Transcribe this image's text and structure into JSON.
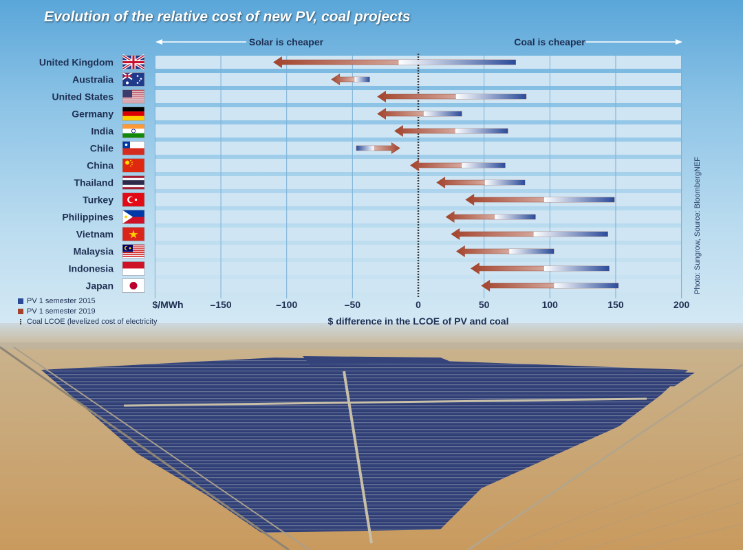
{
  "title": "Evolution of the relative cost of new PV, coal projects",
  "header_left": "Solar is cheaper",
  "header_right": "Coal is cheaper",
  "legend": [
    {
      "label": "PV 1 semester 2015",
      "color": "#2b4b99"
    },
    {
      "label": "PV 1 semester 2019",
      "color": "#a3432c"
    },
    {
      "label": "Coal LCOE (levelized cost of electricity",
      "color": "#444444"
    }
  ],
  "credit": "Photo: Sungrow, Source: BloombergNEF",
  "colors": {
    "pv2015": "#2b4b99",
    "pv2019": "#a3432c",
    "band": "#cfe5f3",
    "grid": "#7ab0d6"
  },
  "chart_data": {
    "type": "arrow-range",
    "title": "Evolution of the relative cost of new PV, coal projects",
    "xlabel": "$ difference in the LCOE of PV and coal",
    "unit_label": "$/MWh",
    "xlim": [
      -200,
      200
    ],
    "xticks": [
      -150,
      -100,
      -50,
      0,
      50,
      100,
      150,
      200
    ],
    "tick_labels": [
      "–150",
      "–100",
      "–50",
      "0",
      "50",
      "100",
      "150",
      "200"
    ],
    "series_names": [
      "PV 1 semester 2015",
      "PV 1 semester 2019"
    ],
    "categories": [
      "United Kingdom",
      "Australia",
      "United States",
      "Germany",
      "India",
      "Chile",
      "China",
      "Thailand",
      "Turkey",
      "Philippines",
      "Vietnam",
      "Malaysia",
      "Indonesia",
      "Japan"
    ],
    "pv_2015": [
      74,
      -37,
      82,
      33,
      68,
      -47,
      66,
      81,
      149,
      89,
      144,
      103,
      145,
      152
    ],
    "pv_2019": [
      -110,
      -66,
      -31,
      -31,
      -18,
      -14,
      -6,
      14,
      36,
      21,
      25,
      29,
      40,
      48
    ],
    "flags": [
      "uk-flag",
      "australia-flag",
      "usa-flag",
      "germany-flag",
      "india-flag",
      "chile-flag",
      "china-flag",
      "thailand-flag",
      "turkey-flag",
      "philippines-flag",
      "vietnam-flag",
      "malaysia-flag",
      "indonesia-flag",
      "japan-flag"
    ]
  }
}
